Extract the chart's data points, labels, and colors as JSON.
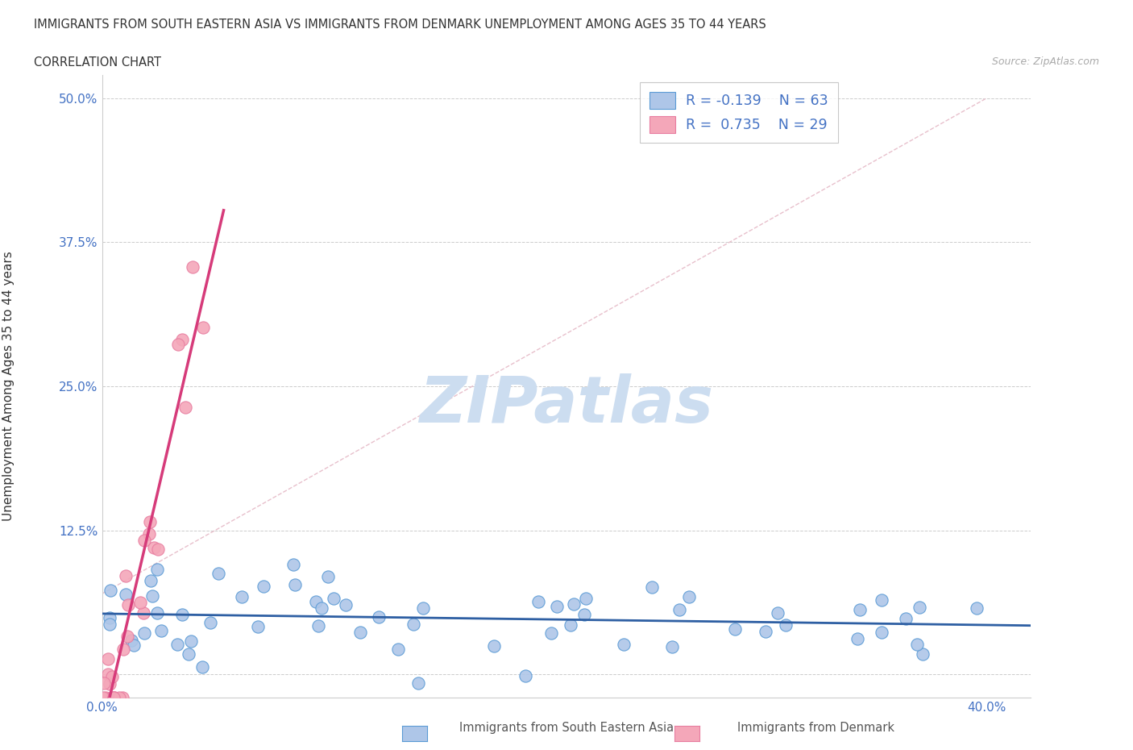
{
  "title": "IMMIGRANTS FROM SOUTH EASTERN ASIA VS IMMIGRANTS FROM DENMARK UNEMPLOYMENT AMONG AGES 35 TO 44 YEARS",
  "subtitle": "CORRELATION CHART",
  "source": "Source: ZipAtlas.com",
  "xlim": [
    0.0,
    0.42
  ],
  "ylim": [
    -0.02,
    0.52
  ],
  "watermark": "ZIPatlas",
  "series1_label": "Immigrants from South Eastern Asia",
  "series2_label": "Immigrants from Denmark",
  "series1_color": "#aec6e8",
  "series2_color": "#f4a7b9",
  "series1_edge": "#5b9bd5",
  "series2_edge": "#e87da0",
  "trend1_color": "#2e5fa3",
  "trend2_color": "#d63b7a",
  "ref_line_color": "#ddbbcc",
  "grid_color": "#cccccc",
  "title_color": "#333333",
  "axis_label_color": "#333333",
  "axis_tick_color": "#4472c4",
  "watermark_color": "#ccddf0",
  "legend_text_color": "#4472c4"
}
